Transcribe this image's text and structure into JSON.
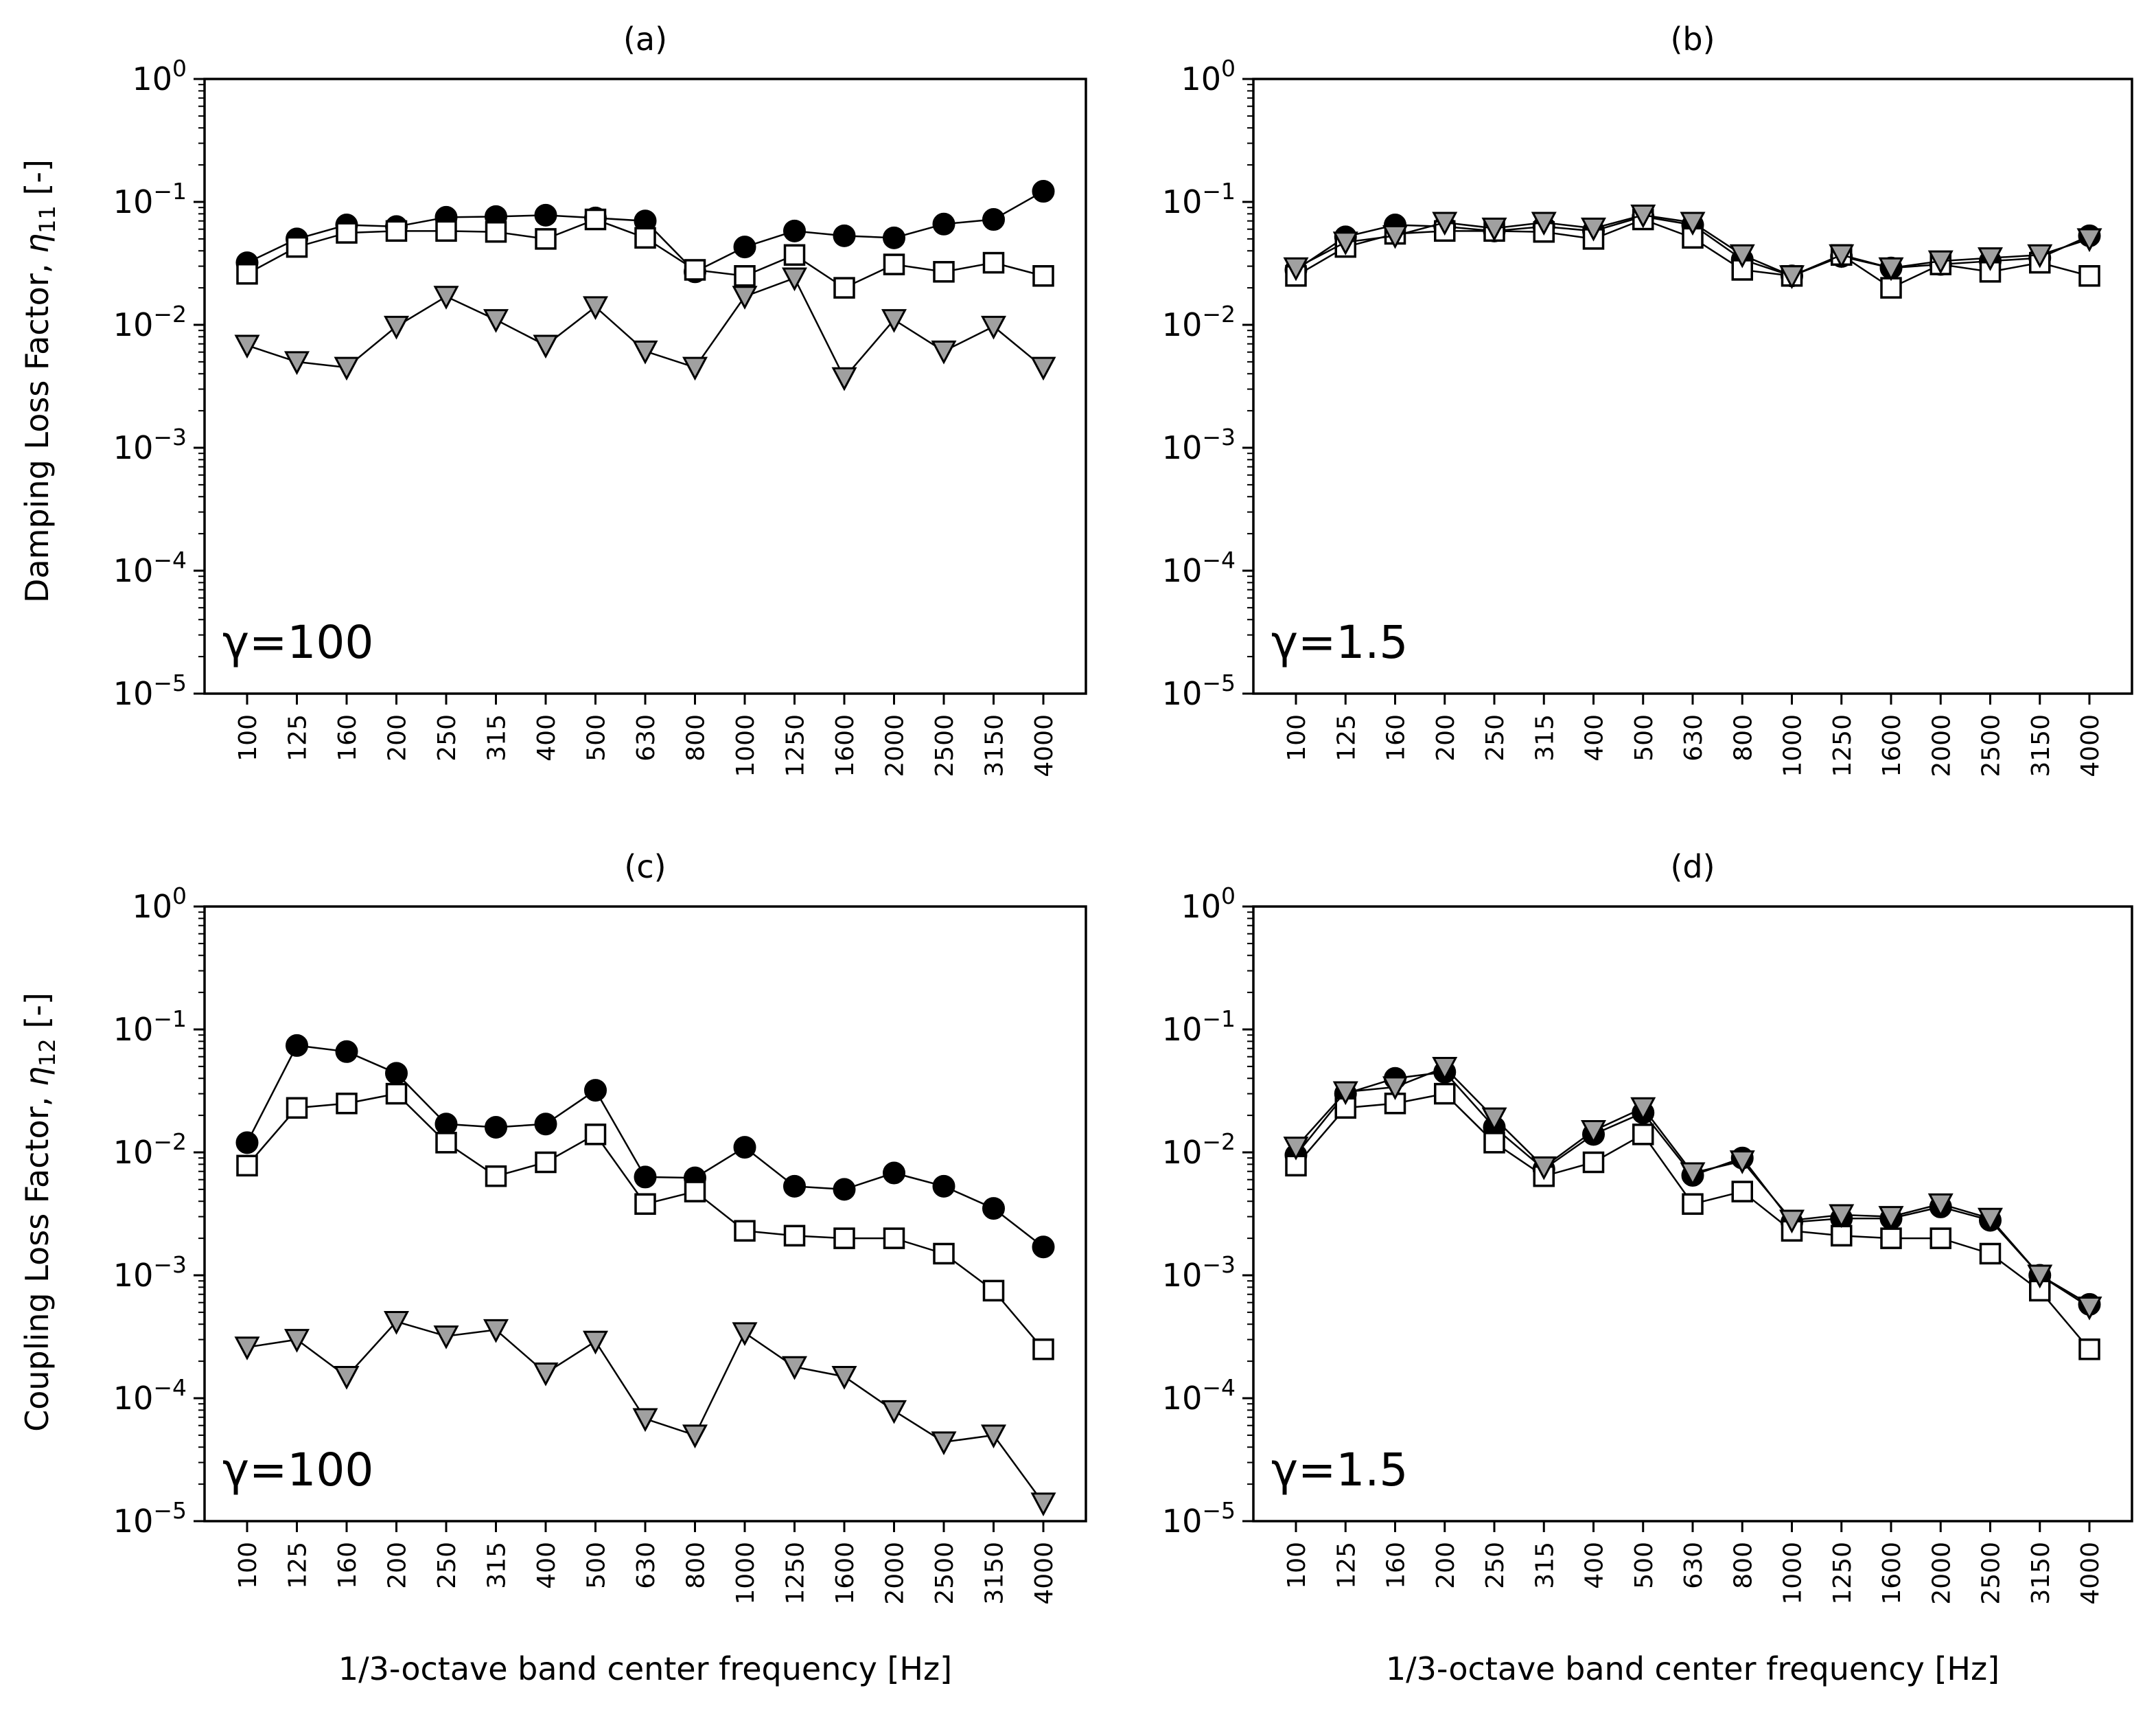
{
  "figure": {
    "ylabel_top": "Damping Loss Factor, ",
    "ylabel_top_symbol": "η",
    "ylabel_top_sub": "11",
    "ylabel_top_unit": " [-]",
    "ylabel_bottom": "Coupling Loss Factor, ",
    "ylabel_bottom_symbol": "η",
    "ylabel_bottom_sub": "12",
    "ylabel_bottom_unit": " [-]",
    "xlabel": "1/3-octave band center frequency [Hz]",
    "ytick_base": "10",
    "yticks_exp": [
      "0",
      "−1",
      "−2",
      "−3",
      "−4",
      "−5"
    ]
  },
  "chart_data": [
    {
      "type": "line",
      "title": "(a)",
      "annotation": "γ=100",
      "yscale": "log",
      "ylim": [
        1e-05,
        1
      ],
      "categories": [
        "100",
        "125",
        "160",
        "200",
        "250",
        "315",
        "400",
        "500",
        "630",
        "800",
        "1000",
        "1250",
        "1600",
        "2000",
        "2500",
        "3150",
        "4000"
      ],
      "series": [
        {
          "name": "filled-circle",
          "marker": "circle",
          "color": "#000000",
          "values": [
            0.032,
            0.05,
            0.065,
            0.063,
            0.075,
            0.076,
            0.078,
            0.074,
            0.07,
            0.027,
            0.043,
            0.058,
            0.053,
            0.051,
            0.066,
            0.072,
            0.122
          ]
        },
        {
          "name": "open-square",
          "marker": "square",
          "color": "#ffffff",
          "values": [
            0.026,
            0.043,
            0.056,
            0.058,
            0.058,
            0.057,
            0.05,
            0.072,
            0.051,
            0.028,
            0.025,
            0.037,
            0.02,
            0.031,
            0.027,
            0.032,
            0.025
          ]
        },
        {
          "name": "grey-triangle",
          "marker": "triangle",
          "color": "#a0a0a0",
          "values": [
            0.0068,
            0.005,
            0.0045,
            0.0097,
            0.017,
            0.011,
            0.0068,
            0.014,
            0.0061,
            0.0045,
            0.017,
            0.024,
            0.0037,
            0.011,
            0.0061,
            0.0097,
            0.0045
          ]
        }
      ]
    },
    {
      "type": "line",
      "title": "(b)",
      "annotation": "γ=1.5",
      "yscale": "log",
      "ylim": [
        1e-05,
        1
      ],
      "categories": [
        "100",
        "125",
        "160",
        "200",
        "250",
        "315",
        "400",
        "500",
        "630",
        "800",
        "1000",
        "1250",
        "1600",
        "2000",
        "2500",
        "3150",
        "4000"
      ],
      "series": [
        {
          "name": "filled-circle",
          "marker": "circle",
          "color": "#000000",
          "values": [
            0.028,
            0.052,
            0.065,
            0.063,
            0.058,
            0.063,
            0.058,
            0.076,
            0.065,
            0.034,
            0.025,
            0.036,
            0.029,
            0.031,
            0.033,
            0.035,
            0.053
          ]
        },
        {
          "name": "open-square",
          "marker": "square",
          "color": "#ffffff",
          "values": [
            0.025,
            0.043,
            0.055,
            0.058,
            0.058,
            0.057,
            0.05,
            0.072,
            0.051,
            0.028,
            0.025,
            0.037,
            0.02,
            0.031,
            0.027,
            0.032,
            0.025
          ]
        },
        {
          "name": "grey-triangle",
          "marker": "triangle",
          "color": "#a0a0a0",
          "values": [
            0.029,
            0.047,
            0.053,
            0.068,
            0.061,
            0.068,
            0.061,
            0.078,
            0.068,
            0.037,
            0.025,
            0.037,
            0.029,
            0.033,
            0.035,
            0.037,
            0.05
          ]
        }
      ]
    },
    {
      "type": "line",
      "title": "(c)",
      "annotation": "γ=100",
      "yscale": "log",
      "ylim": [
        1e-05,
        1
      ],
      "categories": [
        "100",
        "125",
        "160",
        "200",
        "250",
        "315",
        "400",
        "500",
        "630",
        "800",
        "1000",
        "1250",
        "1600",
        "2000",
        "2500",
        "3150",
        "4000"
      ],
      "series": [
        {
          "name": "filled-circle",
          "marker": "circle",
          "color": "#000000",
          "values": [
            0.012,
            0.074,
            0.066,
            0.044,
            0.017,
            0.016,
            0.017,
            0.032,
            0.0063,
            0.0062,
            0.011,
            0.0053,
            0.005,
            0.0068,
            0.0053,
            0.0035,
            0.0017
          ]
        },
        {
          "name": "open-square",
          "marker": "square",
          "color": "#ffffff",
          "values": [
            0.0078,
            0.023,
            0.025,
            0.03,
            0.012,
            0.0064,
            0.0083,
            0.014,
            0.0038,
            0.0048,
            0.0023,
            0.0021,
            0.002,
            0.002,
            0.0015,
            0.00075,
            0.00025
          ]
        },
        {
          "name": "grey-triangle",
          "marker": "triangle",
          "color": "#a0a0a0",
          "values": [
            0.00026,
            0.0003,
            0.00015,
            0.00042,
            0.00032,
            0.00036,
            0.00016,
            0.00029,
            6.8e-05,
            5e-05,
            0.00034,
            0.00018,
            0.00015,
            7.9e-05,
            4.4e-05,
            5e-05,
            1.4e-05
          ]
        }
      ]
    },
    {
      "type": "line",
      "title": "(d)",
      "annotation": "γ=1.5",
      "yscale": "log",
      "ylim": [
        1e-05,
        1
      ],
      "categories": [
        "100",
        "125",
        "160",
        "200",
        "250",
        "315",
        "400",
        "500",
        "630",
        "800",
        "1000",
        "1250",
        "1600",
        "2000",
        "2500",
        "3150",
        "4000"
      ],
      "series": [
        {
          "name": "filled-circle",
          "marker": "circle",
          "color": "#000000",
          "values": [
            0.0095,
            0.03,
            0.04,
            0.045,
            0.016,
            0.0073,
            0.014,
            0.021,
            0.0065,
            0.009,
            0.0027,
            0.0029,
            0.0029,
            0.0036,
            0.0028,
            0.001,
            0.00058
          ]
        },
        {
          "name": "open-square",
          "marker": "square",
          "color": "#ffffff",
          "values": [
            0.0078,
            0.023,
            0.025,
            0.03,
            0.012,
            0.0064,
            0.0083,
            0.014,
            0.0038,
            0.0048,
            0.0023,
            0.0021,
            0.002,
            0.002,
            0.0015,
            0.00075,
            0.00025
          ]
        },
        {
          "name": "grey-triangle",
          "marker": "triangle",
          "color": "#a0a0a0",
          "values": [
            0.011,
            0.031,
            0.034,
            0.049,
            0.019,
            0.0076,
            0.015,
            0.023,
            0.0068,
            0.0085,
            0.0028,
            0.0031,
            0.003,
            0.0038,
            0.0029,
            0.001,
            0.00055
          ]
        }
      ]
    }
  ]
}
